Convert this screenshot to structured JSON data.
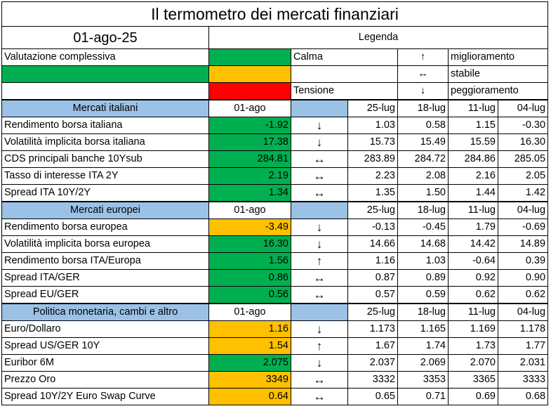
{
  "title": "Il termometro dei mercati finanziari",
  "date": "01-ago-25",
  "legend": {
    "title": "Legenda",
    "overall_label": "Valutazione complessiva",
    "calm": "Calma",
    "tension": "Tensione",
    "up_symbol": "↑",
    "up_label": "miglioramento",
    "stable_symbol": "↔",
    "stable_label": "stabile",
    "down_symbol": "↓",
    "down_label": "peggioramento"
  },
  "colors": {
    "green": "#00b050",
    "amber": "#ffc000",
    "red": "#ff0000",
    "section_blue": "#9bc2e6"
  },
  "sections": [
    {
      "name": "Mercati italiani",
      "headers": [
        "01-ago",
        "25-lug",
        "18-lug",
        "11-lug",
        "04-lug"
      ],
      "rows": [
        {
          "label": "Rendimento borsa italiana",
          "value": "-1.92",
          "color": "green",
          "arrow": "↓",
          "h1": "1.03",
          "h2": "0.58",
          "h3": "1.15",
          "h4": "-0.30"
        },
        {
          "label": "Volatilità implicita borsa italiana",
          "value": "17.38",
          "color": "green",
          "arrow": "↓",
          "h1": "15.73",
          "h2": "15.49",
          "h3": "15.59",
          "h4": "16.30"
        },
        {
          "label": "CDS principali banche 10Ysub",
          "value": "284.81",
          "color": "green",
          "arrow": "↔",
          "h1": "283.89",
          "h2": "284.72",
          "h3": "284.86",
          "h4": "285.05"
        },
        {
          "label": "Tasso di interesse ITA 2Y",
          "value": "2.19",
          "color": "green",
          "arrow": "↔",
          "h1": "2.23",
          "h2": "2.08",
          "h3": "2.16",
          "h4": "2.05"
        },
        {
          "label": "Spread ITA 10Y/2Y",
          "value": "1.34",
          "color": "green",
          "arrow": "↔",
          "h1": "1.35",
          "h2": "1.50",
          "h3": "1.44",
          "h4": "1.42"
        }
      ]
    },
    {
      "name": "Mercati europei",
      "headers": [
        "01-ago",
        "25-lug",
        "18-lug",
        "11-lug",
        "04-lug"
      ],
      "rows": [
        {
          "label": "Rendimento borsa europea",
          "value": "-3.49",
          "color": "amber",
          "arrow": "↓",
          "h1": "-0.13",
          "h2": "-0.45",
          "h3": "1.79",
          "h4": "-0.69"
        },
        {
          "label": "Volatilità implicita borsa europea",
          "value": "16.30",
          "color": "green",
          "arrow": "↓",
          "h1": "14.66",
          "h2": "14.68",
          "h3": "14.42",
          "h4": "14.89"
        },
        {
          "label": "Rendimento borsa ITA/Europa",
          "value": "1.56",
          "color": "green",
          "arrow": "↑",
          "h1": "1.16",
          "h2": "1.03",
          "h3": "-0.64",
          "h4": "0.39"
        },
        {
          "label": "Spread ITA/GER",
          "value": "0.86",
          "color": "green",
          "arrow": "↔",
          "h1": "0.87",
          "h2": "0.89",
          "h3": "0.92",
          "h4": "0.90"
        },
        {
          "label": "Spread EU/GER",
          "value": "0.56",
          "color": "green",
          "arrow": "↔",
          "h1": "0.57",
          "h2": "0.59",
          "h3": "0.62",
          "h4": "0.62"
        }
      ]
    },
    {
      "name": "Politica monetaria, cambi e altro",
      "headers": [
        "01-ago",
        "25-lug",
        "18-lug",
        "11-lug",
        "04-lug"
      ],
      "rows": [
        {
          "label": "Euro/Dollaro",
          "value": "1.16",
          "color": "amber",
          "arrow": "↓",
          "h1": "1.173",
          "h2": "1.165",
          "h3": "1.169",
          "h4": "1.178"
        },
        {
          "label": "Spread US/GER 10Y",
          "value": "1.54",
          "color": "amber",
          "arrow": "↑",
          "h1": "1.67",
          "h2": "1.74",
          "h3": "1.73",
          "h4": "1.77"
        },
        {
          "label": "Euribor 6M",
          "value": "2.075",
          "color": "green",
          "arrow": "↓",
          "h1": "2.037",
          "h2": "2.069",
          "h3": "2.070",
          "h4": "2.031"
        },
        {
          "label": "Prezzo Oro",
          "value": "3349",
          "color": "amber",
          "arrow": "↔",
          "h1": "3332",
          "h2": "3353",
          "h3": "3365",
          "h4": "3333"
        },
        {
          "label": "Spread 10Y/2Y Euro Swap Curve",
          "value": "0.64",
          "color": "amber",
          "arrow": "↔",
          "h1": "0.65",
          "h2": "0.71",
          "h3": "0.69",
          "h4": "0.68"
        }
      ]
    }
  ]
}
